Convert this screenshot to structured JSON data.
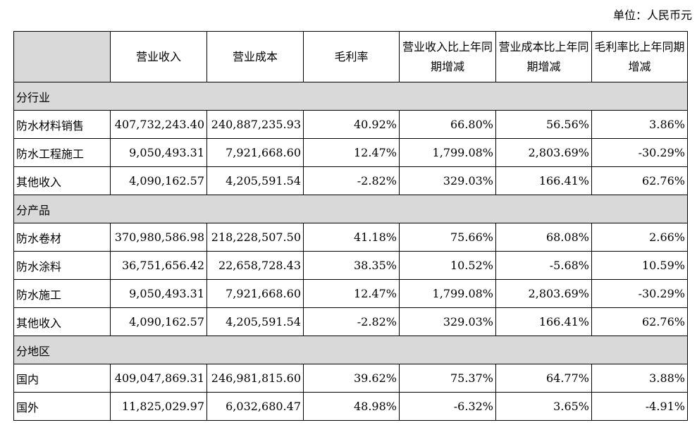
{
  "unit_label": "单位：人民币元",
  "headers": [
    "",
    "营业收入",
    "营业成本",
    "毛利率",
    "营业收入比上年同期增减",
    "营业成本比上年同期增减",
    "毛利率比上年同期增减"
  ],
  "sections": [
    {
      "title": "分行业",
      "rows": [
        [
          "防水材料销售",
          "407,732,243.40",
          "240,887,235.93",
          "40.92%",
          "66.80%",
          "56.56%",
          "3.86%"
        ],
        [
          "防水工程施工",
          "9,050,493.31",
          "7,921,668.60",
          "12.47%",
          "1,799.08%",
          "2,803.69%",
          "-30.29%"
        ],
        [
          "其他收入",
          "4,090,162.57",
          "4,205,591.54",
          "-2.82%",
          "329.03%",
          "166.41%",
          "62.76%"
        ]
      ]
    },
    {
      "title": "分产品",
      "rows": [
        [
          "防水卷材",
          "370,980,586.98",
          "218,228,507.50",
          "41.18%",
          "75.66%",
          "68.08%",
          "2.66%"
        ],
        [
          "防水涂料",
          "36,751,656.42",
          "22,658,728.43",
          "38.35%",
          "10.52%",
          "-5.68%",
          "10.59%"
        ],
        [
          "防水施工",
          "9,050,493.31",
          "7,921,668.60",
          "12.47%",
          "1,799.08%",
          "2,803.69%",
          "-30.29%"
        ],
        [
          "其他收入",
          "4,090,162.57",
          "4,205,591.54",
          "-2.82%",
          "329.03%",
          "166.41%",
          "62.76%"
        ]
      ]
    },
    {
      "title": "分地区",
      "rows": [
        [
          "国内",
          "409,047,869.31",
          "246,981,815.60",
          "39.62%",
          "75.37%",
          "64.77%",
          "3.88%"
        ],
        [
          "国外",
          "11,825,029.97",
          "6,032,680.47",
          "48.98%",
          "-6.32%",
          "3.65%",
          "-4.91%"
        ]
      ]
    }
  ],
  "colors": {
    "header_bg": "#d9d9d9",
    "section_bg": "#d9d9d9",
    "border": "#000000"
  }
}
